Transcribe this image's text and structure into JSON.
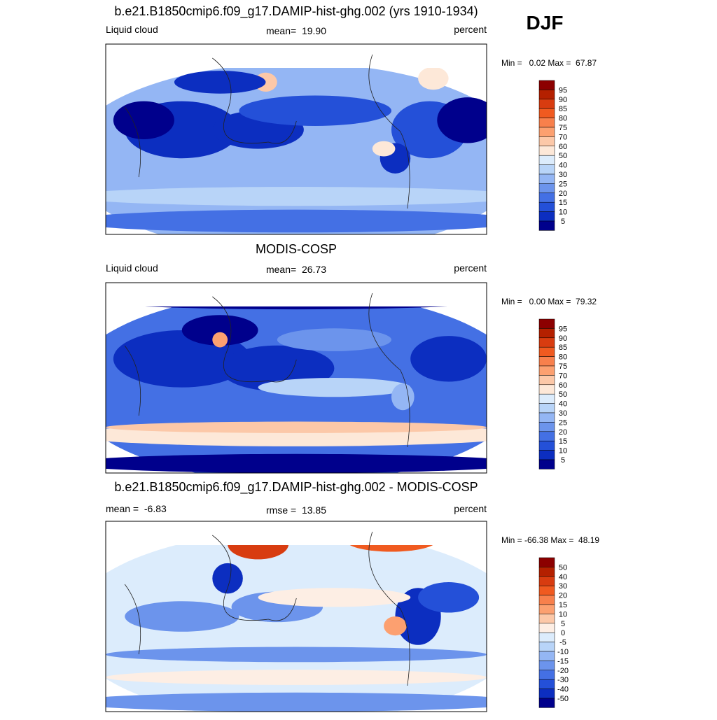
{
  "season": "DJF",
  "panels": [
    {
      "title": "b.e21.B1850cmip6.f09_g17.DAMIP-hist-ghg.002 (yrs 1910-1934)",
      "left": "Liquid cloud",
      "center": "mean=  19.90",
      "right": "percent",
      "minmax": "Min =   0.02 Max =  67.87",
      "colorbar": {
        "labels": [
          "95",
          "90",
          "85",
          "80",
          "75",
          "70",
          "60",
          "50",
          "40",
          "30",
          "25",
          "20",
          "15",
          "10",
          "5"
        ],
        "colors": [
          "#8c0000",
          "#b42000",
          "#d83c10",
          "#f05a20",
          "#f8804c",
          "#fca070",
          "#fcc8a8",
          "#fde8d8",
          "#dcecfc",
          "#b8d4f8",
          "#94b6f4",
          "#6c94ec",
          "#4470e4",
          "#2450d8",
          "#0c2ec0",
          "#00008c"
        ]
      }
    },
    {
      "title": "MODIS-COSP",
      "left": "Liquid cloud",
      "center": "mean=  26.73",
      "right": "percent",
      "minmax": "Min =   0.00 Max =  79.32",
      "colorbar": {
        "labels": [
          "95",
          "90",
          "85",
          "80",
          "75",
          "70",
          "60",
          "50",
          "40",
          "30",
          "25",
          "20",
          "15",
          "10",
          "5"
        ],
        "colors": [
          "#8c0000",
          "#b42000",
          "#d83c10",
          "#f05a20",
          "#f8804c",
          "#fca070",
          "#fcc8a8",
          "#fde8d8",
          "#dcecfc",
          "#b8d4f8",
          "#94b6f4",
          "#6c94ec",
          "#4470e4",
          "#2450d8",
          "#0c2ec0",
          "#00008c"
        ]
      }
    },
    {
      "title": "b.e21.B1850cmip6.f09_g17.DAMIP-hist-ghg.002 - MODIS-COSP",
      "left": "mean =  -6.83",
      "center": "rmse =  13.85",
      "right": "percent",
      "minmax": "Min = -66.38 Max =  48.19",
      "colorbar": {
        "labels": [
          "50",
          "40",
          "30",
          "20",
          "15",
          "10",
          "5",
          "0",
          "-5",
          "-10",
          "-15",
          "-20",
          "-30",
          "-40",
          "-50"
        ],
        "colors": [
          "#8c0000",
          "#b42000",
          "#d83c10",
          "#f05a20",
          "#f8804c",
          "#fca070",
          "#fcc8a8",
          "#fdeee4",
          "#dcecfc",
          "#b8d4f8",
          "#94b6f4",
          "#6c94ec",
          "#4470e4",
          "#2450d8",
          "#0c2ec0",
          "#00008c"
        ]
      }
    }
  ]
}
